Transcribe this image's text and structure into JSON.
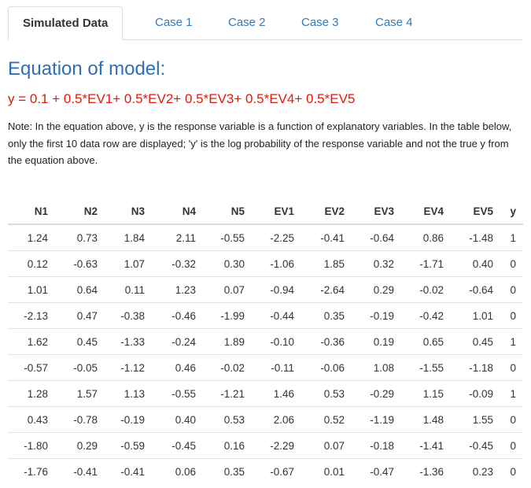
{
  "tabs": [
    "Simulated Data",
    "Case 1",
    "Case 2",
    "Case 3",
    "Case 4"
  ],
  "heading": "Equation of model:",
  "equation": "y = 0.1 + 0.5*EV1+ 0.5*EV2+ 0.5*EV3+ 0.5*EV4+ 0.5*EV5",
  "note": "Note: In the equation above, y is the response variable is a function of explanatory variables. In the table below, only the first 10 data row are displayed; 'y' is the log probability of the response variable and not the true y from the equation above.",
  "table": {
    "columns": [
      "N1",
      "N2",
      "N3",
      "N4",
      "N5",
      "EV1",
      "EV2",
      "EV3",
      "EV4",
      "EV5",
      "y"
    ],
    "rows": [
      [
        "1.24",
        "0.73",
        "1.84",
        "2.11",
        "-0.55",
        "-2.25",
        "-0.41",
        "-0.64",
        "0.86",
        "-1.48",
        "1"
      ],
      [
        "0.12",
        "-0.63",
        "1.07",
        "-0.32",
        "0.30",
        "-1.06",
        "1.85",
        "0.32",
        "-1.71",
        "0.40",
        "0"
      ],
      [
        "1.01",
        "0.64",
        "0.11",
        "1.23",
        "0.07",
        "-0.94",
        "-2.64",
        "0.29",
        "-0.02",
        "-0.64",
        "0"
      ],
      [
        "-2.13",
        "0.47",
        "-0.38",
        "-0.46",
        "-1.99",
        "-0.44",
        "0.35",
        "-0.19",
        "-0.42",
        "1.01",
        "0"
      ],
      [
        "1.62",
        "0.45",
        "-1.33",
        "-0.24",
        "1.89",
        "-0.10",
        "-0.36",
        "0.19",
        "0.65",
        "0.45",
        "1"
      ],
      [
        "-0.57",
        "-0.05",
        "-1.12",
        "0.46",
        "-0.02",
        "-0.11",
        "-0.06",
        "1.08",
        "-1.55",
        "-1.18",
        "0"
      ],
      [
        "1.28",
        "1.57",
        "1.13",
        "-0.55",
        "-1.21",
        "1.46",
        "0.53",
        "-0.29",
        "1.15",
        "-0.09",
        "1"
      ],
      [
        "0.43",
        "-0.78",
        "-0.19",
        "0.40",
        "0.53",
        "2.06",
        "0.52",
        "-1.19",
        "1.48",
        "1.55",
        "0"
      ],
      [
        "-1.80",
        "0.29",
        "-0.59",
        "-0.45",
        "0.16",
        "-2.29",
        "0.07",
        "-0.18",
        "-1.41",
        "-0.45",
        "0"
      ],
      [
        "-1.76",
        "-0.41",
        "-0.41",
        "0.06",
        "0.35",
        "-0.67",
        "0.01",
        "-0.47",
        "-1.36",
        "0.23",
        "0"
      ]
    ]
  }
}
